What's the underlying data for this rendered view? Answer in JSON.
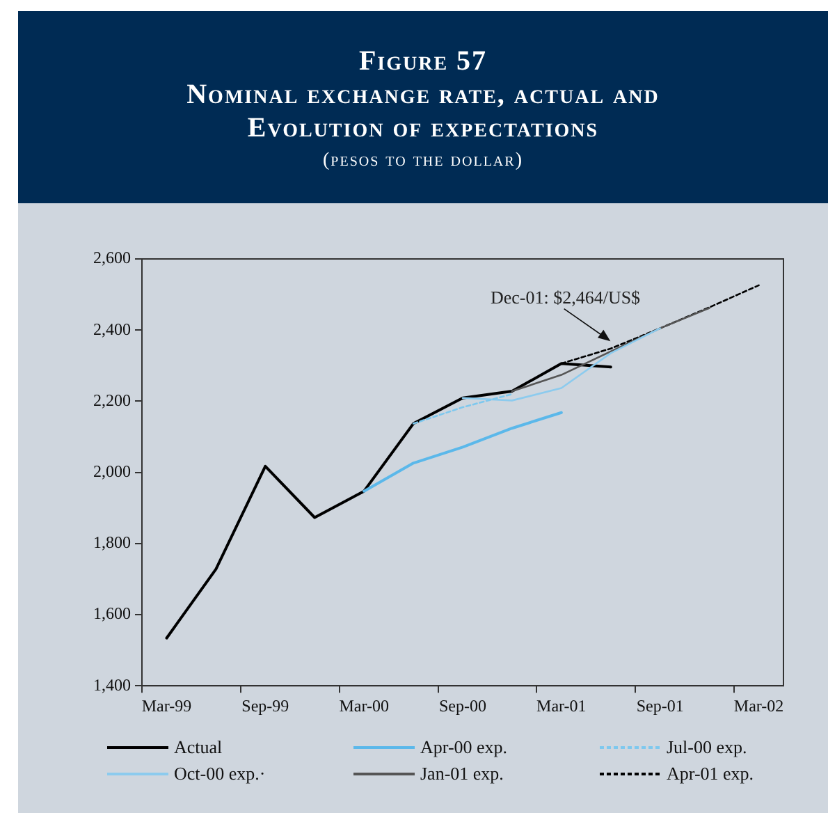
{
  "chart_data": {
    "type": "line",
    "title": "Figure 57\nNominal exchange rate, actual and\nEvolution of expectations",
    "subtitle": "(pesos to the dollar)",
    "categories": [
      "Mar-99",
      null,
      "Sep-99",
      null,
      "Mar-00",
      null,
      "Sep-00",
      null,
      "Mar-01",
      null,
      "Sep-01",
      null,
      "Mar-02"
    ],
    "series": [
      {
        "name": "Actual",
        "color": "#000000",
        "line_style": "solid",
        "values": [
          1534,
          1728,
          2017,
          1873,
          1947,
          2137,
          2209,
          2228,
          2306,
          2296,
          null,
          null,
          null
        ]
      },
      {
        "name": "Apr-00 exp.",
        "color": "#5bb8ea",
        "line_style": "solid",
        "values": [
          null,
          null,
          null,
          null,
          1947,
          2026,
          2071,
          2124,
          2168,
          null,
          null,
          null,
          null
        ]
      },
      {
        "name": "Jul-00 exp.",
        "color": "#7ec8ee",
        "line_style": "dotted",
        "values": [
          null,
          null,
          null,
          null,
          null,
          2137,
          2183,
          2220,
          null,
          null,
          null,
          null,
          null
        ]
      },
      {
        "name": "Oct-00 exp.·",
        "color": "#8ccbee",
        "line_style": "solid",
        "values": [
          null,
          null,
          null,
          null,
          null,
          null,
          2209,
          2202,
          2237,
          2335,
          2405,
          null,
          null
        ]
      },
      {
        "name": "Jan-01 exp.",
        "color": "#555555",
        "line_style": "solid",
        "values": [
          null,
          null,
          null,
          null,
          null,
          null,
          null,
          2228,
          2274,
          2340,
          2405,
          2462,
          null
        ]
      },
      {
        "name": "Apr-01 exp.",
        "color": "#000000",
        "line_style": "dotted",
        "values": [
          null,
          null,
          null,
          null,
          null,
          null,
          null,
          null,
          2306,
          2348,
          2405,
          2464,
          2526
        ]
      }
    ],
    "ylim": [
      1400,
      2600
    ],
    "yticks": [
      {
        "value": 1400,
        "label": "1,400"
      },
      {
        "value": 1600,
        "label": "1,600"
      },
      {
        "value": 1800,
        "label": "1,800"
      },
      {
        "value": 2000,
        "label": "2,000"
      },
      {
        "value": 2200,
        "label": "2,200"
      },
      {
        "value": 2400,
        "label": "2,400"
      },
      {
        "value": 2600,
        "label": "2,600"
      }
    ],
    "annotations": [
      "Dec-01: $2,464/US$"
    ],
    "grid": false,
    "legend": "bottom",
    "marker": "none"
  }
}
